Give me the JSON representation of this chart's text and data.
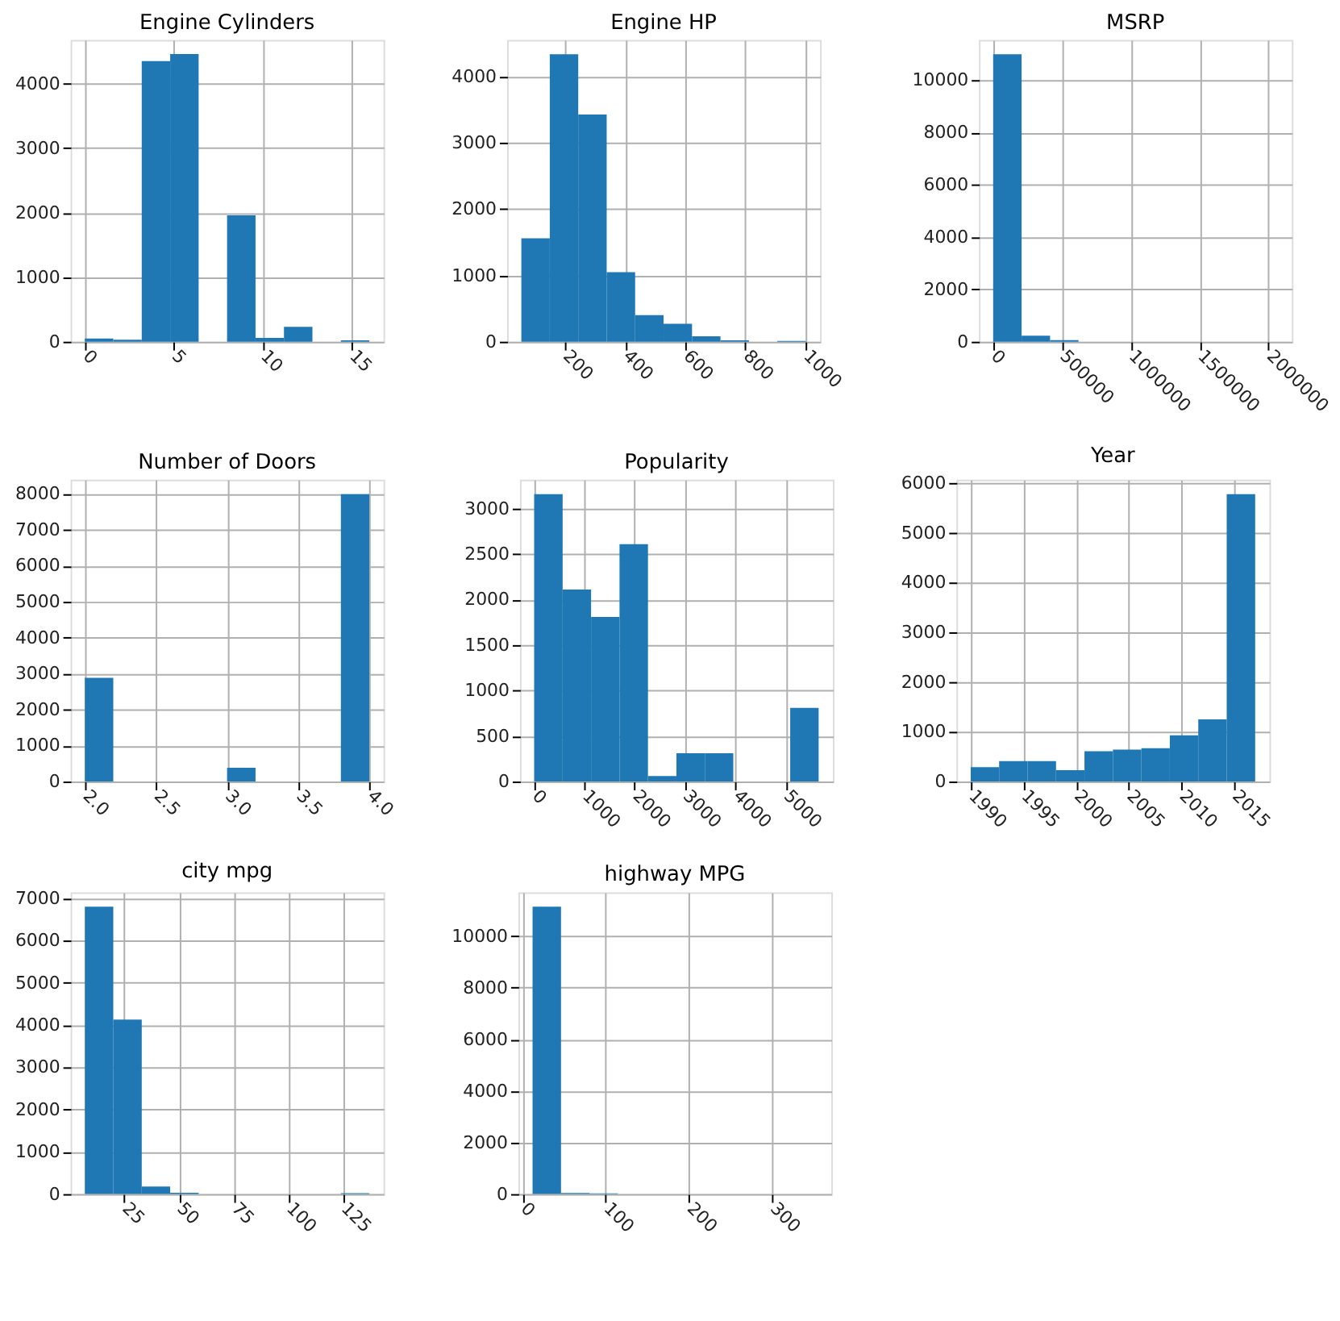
{
  "chart_data": [
    {
      "type": "histogram",
      "title": "Engine Cylinders",
      "bins": [
        0,
        1.6,
        3.2,
        4.8,
        6.4,
        8,
        9.6,
        11.2,
        12.8,
        14.4,
        16
      ],
      "values": [
        50,
        30,
        4350,
        4460,
        0,
        1960,
        60,
        230,
        0,
        20
      ],
      "color": "#1f77b4",
      "xlim": [
        -0.8,
        16.8
      ],
      "xticks": [
        0,
        5,
        10,
        15
      ],
      "ylim": [
        0,
        4680
      ],
      "yticks": [
        0,
        1000,
        2000,
        3000,
        4000
      ],
      "grid": true
    },
    {
      "type": "histogram",
      "title": "Engine HP",
      "bins": [
        55,
        149.6,
        244.2,
        338.8,
        433.4,
        528,
        622.6,
        717.2,
        811.8,
        906.4,
        1001
      ],
      "values": [
        1560,
        4340,
        3430,
        1050,
        400,
        270,
        80,
        20,
        0,
        10
      ],
      "color": "#1f77b4",
      "xlim": [
        7.7,
        1048.3
      ],
      "xticks": [
        200,
        400,
        600,
        800,
        1000
      ],
      "ylim": [
        0,
        4557
      ],
      "yticks": [
        0,
        1000,
        2000,
        3000,
        4000
      ],
      "grid": true
    },
    {
      "type": "histogram",
      "title": "MSRP",
      "bins": [
        2000,
        208390,
        414780,
        621170,
        827560,
        1033951,
        1240341,
        1446731,
        1653121,
        1859512,
        2065902
      ],
      "values": [
        10980,
        230,
        60,
        0,
        0,
        0,
        0,
        0,
        0,
        0
      ],
      "color": "#1f77b4",
      "xlim": [
        -101195,
        2169097
      ],
      "xticks": [
        0,
        500000,
        1000000,
        1500000,
        2000000
      ],
      "ylim": [
        0,
        11529
      ],
      "yticks": [
        0,
        2000,
        4000,
        6000,
        8000,
        10000
      ],
      "grid": true
    },
    {
      "type": "histogram",
      "title": "Number of Doors",
      "bins": [
        2,
        2.2,
        2.4,
        2.6,
        2.8,
        3,
        3.2,
        3.4,
        3.6,
        3.8,
        4
      ],
      "values": [
        2880,
        0,
        0,
        0,
        0,
        380,
        0,
        0,
        0,
        7990
      ],
      "color": "#1f77b4",
      "xlim": [
        1.9,
        4.1
      ],
      "xticks": [
        {
          "value": 2,
          "label": "2.0"
        },
        2.5,
        {
          "value": 3,
          "label": "3.0"
        },
        3.5,
        {
          "value": 4,
          "label": "4.0"
        }
      ],
      "ylim": [
        0,
        8390
      ],
      "yticks": [
        0,
        1000,
        2000,
        3000,
        4000,
        5000,
        6000,
        7000,
        8000
      ],
      "grid": true
    },
    {
      "type": "histogram",
      "title": "Popularity",
      "bins": [
        2,
        567.5,
        1133,
        1698.5,
        2264,
        2829.5,
        3395,
        3960.5,
        4526,
        5091.5,
        5657
      ],
      "values": [
        3160,
        2110,
        1810,
        2610,
        60,
        310,
        310,
        0,
        0,
        810
      ],
      "color": "#1f77b4",
      "xlim": [
        -281,
        5940
      ],
      "xticks": [
        0,
        1000,
        2000,
        3000,
        4000,
        5000
      ],
      "ylim": [
        0,
        3318
      ],
      "yticks": [
        0,
        500,
        1000,
        1500,
        2000,
        2500,
        3000
      ],
      "grid": true
    },
    {
      "type": "histogram",
      "title": "Year",
      "bins": [
        1990,
        1992.7,
        1995.4,
        1998.1,
        2000.8,
        2003.5,
        2006.2,
        2008.9,
        2011.6,
        2014.3,
        2017
      ],
      "values": [
        290,
        410,
        410,
        230,
        610,
        640,
        670,
        930,
        1250,
        5780
      ],
      "color": "#1f77b4",
      "xlim": [
        1988.65,
        2018.35
      ],
      "xticks": [
        1990,
        1995,
        2000,
        2005,
        2010,
        2015
      ],
      "ylim": [
        0,
        6069
      ],
      "yticks": [
        0,
        1000,
        2000,
        3000,
        4000,
        5000,
        6000
      ],
      "grid": true
    },
    {
      "type": "histogram",
      "title": "city mpg",
      "bins": [
        7,
        20,
        33,
        46,
        59,
        72,
        85,
        98,
        111,
        124,
        137
      ],
      "values": [
        6800,
        4130,
        180,
        30,
        0,
        0,
        0,
        0,
        0,
        20
      ],
      "color": "#1f77b4",
      "xlim": [
        0.5,
        143.5
      ],
      "xticks": [
        25,
        50,
        75,
        100,
        125
      ],
      "ylim": [
        0,
        7140
      ],
      "yticks": [
        0,
        1000,
        2000,
        3000,
        4000,
        5000,
        6000,
        7000
      ],
      "grid": true
    },
    {
      "type": "histogram",
      "title": "highway MPG",
      "bins": [
        12,
        46.2,
        80.4,
        114.6,
        148.8,
        183,
        217.2,
        251.4,
        285.6,
        319.8,
        354
      ],
      "values": [
        11140,
        40,
        30,
        0,
        0,
        0,
        0,
        0,
        0,
        0
      ],
      "color": "#1f77b4",
      "xlim": [
        -5.1,
        371.1
      ],
      "xticks": [
        0,
        100,
        200,
        300
      ],
      "ylim": [
        0,
        11697
      ],
      "yticks": [
        0,
        2000,
        4000,
        6000,
        8000,
        10000
      ],
      "grid": true
    }
  ]
}
